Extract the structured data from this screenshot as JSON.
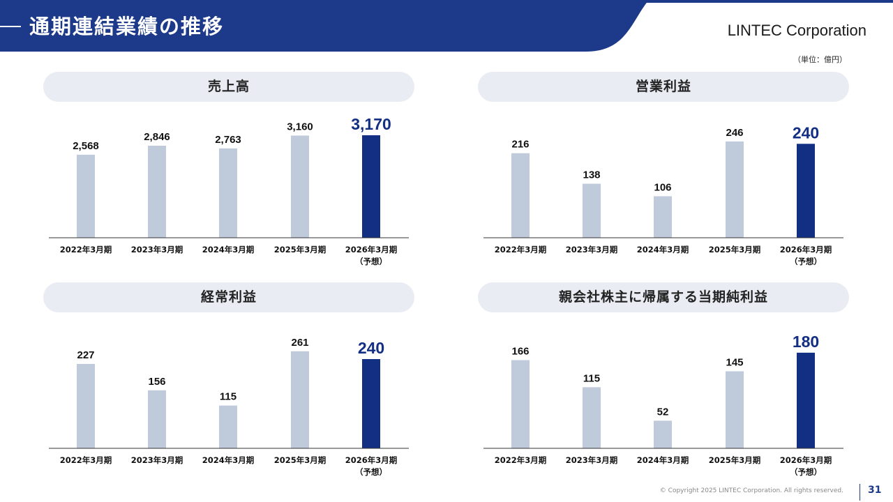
{
  "header": {
    "title": "通期連結業績の推移",
    "company": "LINTEC Corporation",
    "unit_note": "（単位：億円）",
    "band_color": "#1d3a8a"
  },
  "colors": {
    "actual_bar": "#bfcadb",
    "forecast_bar": "#132f83",
    "forecast_label": "#132f83",
    "axis": "#333333"
  },
  "chart_data": [
    {
      "type": "bar",
      "title": "売上高",
      "categories": [
        "2022年3月期",
        "2023年3月期",
        "2024年3月期",
        "2025年3月期",
        "2026年3月期"
      ],
      "category_notes": [
        "",
        "",
        "",
        "",
        "（予想）"
      ],
      "values": [
        2568,
        2846,
        2763,
        3160,
        3170
      ],
      "value_labels": [
        "2,568",
        "2,846",
        "2,763",
        "3,160",
        "3,170"
      ],
      "highlight_index": 4,
      "ylim": [
        0,
        3450
      ]
    },
    {
      "type": "bar",
      "title": "営業利益",
      "categories": [
        "2022年3月期",
        "2023年3月期",
        "2024年3月期",
        "2025年3月期",
        "2026年3月期"
      ],
      "category_notes": [
        "",
        "",
        "",
        "",
        "（予想）"
      ],
      "values": [
        216,
        138,
        106,
        246,
        240
      ],
      "value_labels": [
        "216",
        "138",
        "106",
        "246",
        "240"
      ],
      "highlight_index": 4,
      "ylim": [
        0,
        285
      ]
    },
    {
      "type": "bar",
      "title": "経常利益",
      "categories": [
        "2022年3月期",
        "2023年3月期",
        "2024年3月期",
        "2025年3月期",
        "2026年3月期"
      ],
      "category_notes": [
        "",
        "",
        "",
        "",
        "（予想）"
      ],
      "values": [
        227,
        156,
        115,
        261,
        240
      ],
      "value_labels": [
        "227",
        "156",
        "115",
        "261",
        "240"
      ],
      "highlight_index": 4,
      "ylim": [
        0,
        300
      ]
    },
    {
      "type": "bar",
      "title": "親会社株主に帰属する当期純利益",
      "categories": [
        "2022年3月期",
        "2023年3月期",
        "2024年3月期",
        "2025年3月期",
        "2026年3月期"
      ],
      "category_notes": [
        "",
        "",
        "",
        "",
        "（予想）"
      ],
      "values": [
        166,
        115,
        52,
        145,
        180
      ],
      "value_labels": [
        "166",
        "115",
        "52",
        "145",
        "180"
      ],
      "highlight_index": 4,
      "ylim": [
        0,
        210
      ]
    }
  ],
  "footer": {
    "copyright": "© Copyright 2025 LINTEC Corporation. All rights reserved.",
    "page_number": "31"
  }
}
